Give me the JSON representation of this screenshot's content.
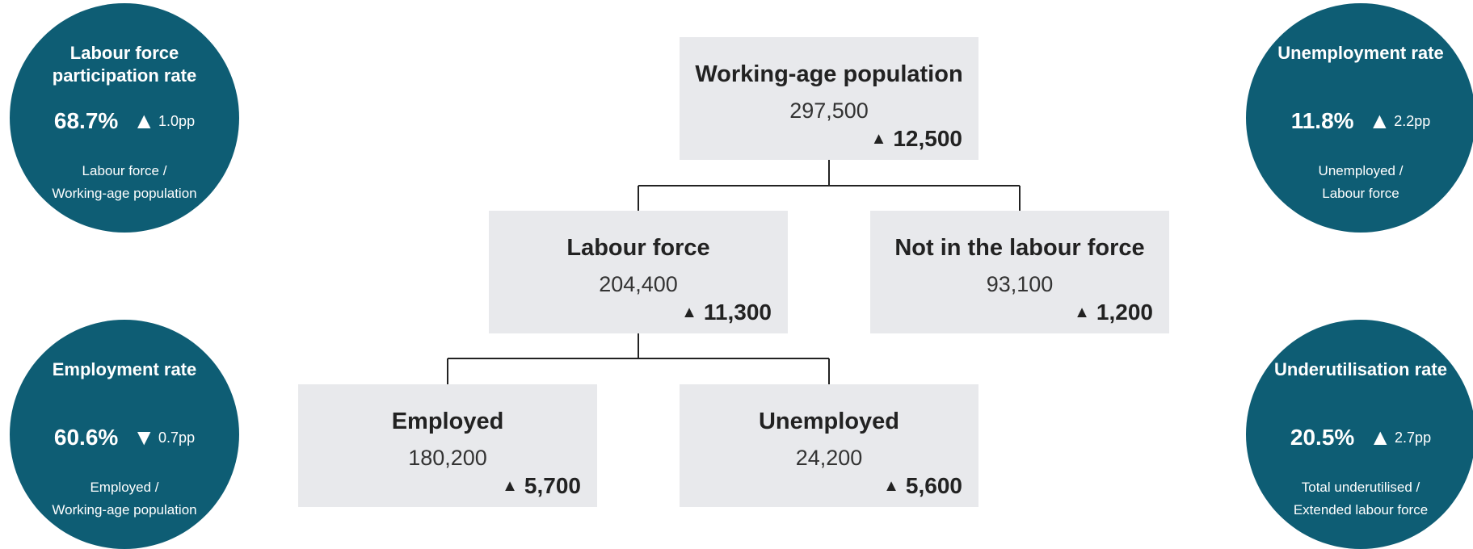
{
  "nodes": {
    "working_age": {
      "label": "Working-age population",
      "value": "297,500",
      "change": "12,500",
      "direction": "up"
    },
    "labour_force": {
      "label": "Labour force",
      "value": "204,400",
      "change": "11,300",
      "direction": "up"
    },
    "not_in_labour_force": {
      "label": "Not in the labour force",
      "value": "93,100",
      "change": "1,200",
      "direction": "up"
    },
    "employed": {
      "label": "Employed",
      "value": "180,200",
      "change": "5,700",
      "direction": "up"
    },
    "unemployed": {
      "label": "Unemployed",
      "value": "24,200",
      "change": "5,600",
      "direction": "up"
    }
  },
  "circles": {
    "participation": {
      "title": "Labour force participation rate",
      "rate": "68.7%",
      "arrow": "▲",
      "delta": "1.0pp",
      "desc_line1": "Labour force /",
      "desc_line2": "Working-age population"
    },
    "unemployment": {
      "title": "Unemployment rate",
      "rate": "11.8%",
      "arrow": "▲",
      "delta": "2.2pp",
      "desc_line1": "Unemployed /",
      "desc_line2": "Labour force"
    },
    "employment": {
      "title": "Employment rate",
      "rate": "60.6%",
      "arrow": "▼",
      "delta": "0.7pp",
      "desc_line1": "Employed /",
      "desc_line2": "Working-age population"
    },
    "underutilisation": {
      "title": "Underutilisation rate",
      "rate": "20.5%",
      "arrow": "▲",
      "delta": "2.7pp",
      "desc_line1": "Total underutilised /",
      "desc_line2": "Extended labour force"
    }
  },
  "colors": {
    "circle_fill": "#0e5d74",
    "node_fill": "#e8e9ec",
    "connector": "#222222"
  }
}
